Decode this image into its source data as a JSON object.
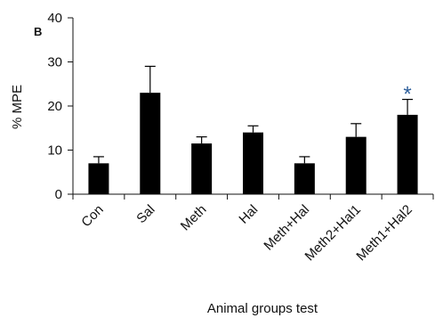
{
  "chart_data": {
    "type": "bar",
    "panel_label": "B",
    "categories": [
      "Con",
      "Sal",
      "Meth",
      "Hal",
      "Meth+Hal",
      "Meth2+Hal1",
      "Meth1+Hal2"
    ],
    "series": [
      {
        "values": [
          7,
          23,
          11.5,
          14,
          7,
          13,
          18
        ],
        "error_plus": [
          1.5,
          6,
          1.5,
          1.5,
          1.5,
          3,
          3.5
        ],
        "color": "#000000"
      }
    ],
    "ylabel": "% MPE",
    "xlabel": "Animal groups test",
    "ylim": [
      0,
      40
    ],
    "yticks": [
      "0",
      "10",
      "20",
      "30",
      "40"
    ],
    "annotations": [
      {
        "category": "Meth1+Hal2",
        "text": "*",
        "color": "#2e5f9b"
      }
    ],
    "grid": false,
    "legend": "none"
  }
}
